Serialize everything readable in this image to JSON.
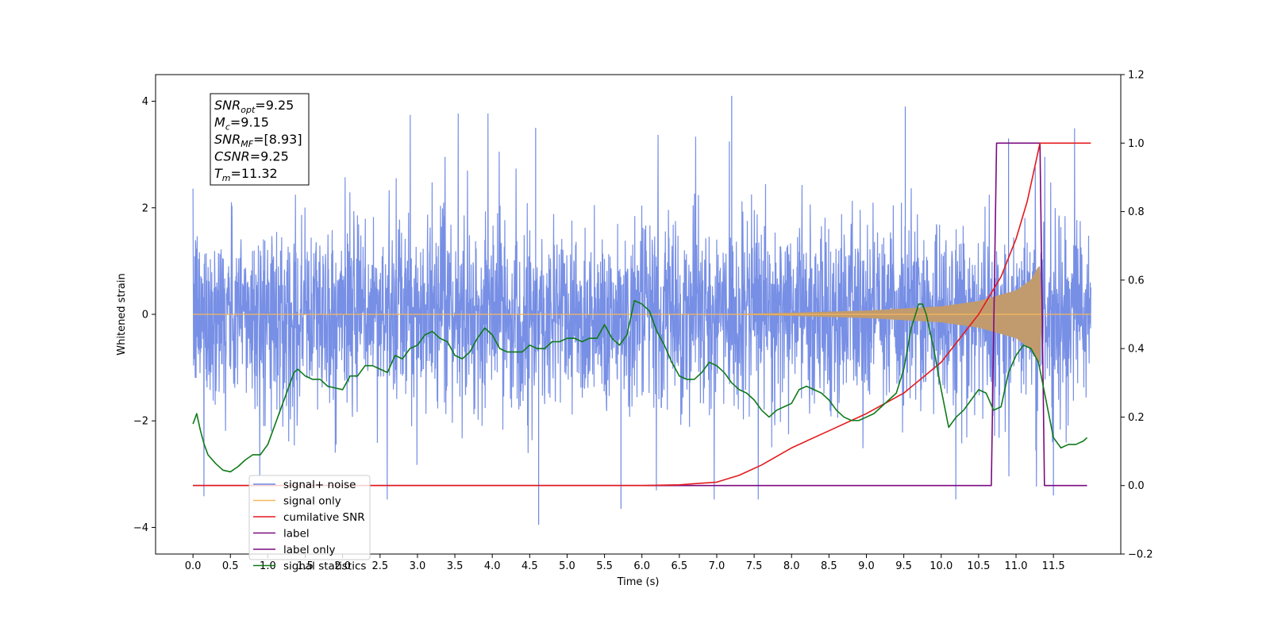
{
  "chart_data": {
    "type": "line",
    "xlabel": "Time (s)",
    "ylabel": "Whitened strain",
    "xlim": [
      -0.5,
      12.4
    ],
    "ylim": [
      -4.5,
      4.5
    ],
    "y2lim": [
      -0.2,
      1.2
    ],
    "xticks": [
      0.0,
      0.5,
      1.0,
      1.5,
      2.0,
      2.5,
      3.0,
      3.5,
      4.0,
      4.5,
      5.0,
      5.5,
      6.0,
      6.5,
      7.0,
      7.5,
      8.0,
      8.5,
      9.0,
      9.5,
      10.0,
      10.5,
      11.0,
      11.5
    ],
    "xtick_labels": [
      "0.0",
      "0.5",
      "1.0",
      "1.5",
      "2.0",
      "2.5",
      "3.0",
      "3.5",
      "4.0",
      "4.5",
      "5.0",
      "5.5",
      "6.0",
      "6.5",
      "7.0",
      "7.5",
      "8.0",
      "8.5",
      "9.0",
      "9.5",
      "10.0",
      "10.5",
      "11.0",
      "11.5"
    ],
    "yticks": [
      -4,
      -2,
      0,
      2,
      4
    ],
    "ytick_labels": [
      "−4",
      "−2",
      "0",
      "2",
      "4"
    ],
    "y2ticks": [
      -0.2,
      0.0,
      0.2,
      0.4,
      0.6,
      0.8,
      1.0,
      1.2
    ],
    "y2tick_labels": [
      "−0.2",
      "0.0",
      "0.2",
      "0.4",
      "0.6",
      "0.8",
      "1.0",
      "1.2"
    ],
    "grid": false,
    "legend_position": "bottom-left",
    "annotation": [
      {
        "sym": "SNR",
        "sub": "opt",
        "value": "=9.25"
      },
      {
        "sym": "M",
        "sub": "c",
        "value": "=9.15"
      },
      {
        "sym": "SNR",
        "sub": "MF",
        "value": "=[8.93]"
      },
      {
        "sym": "CSNR",
        "sub": "",
        "value": "=9.25"
      },
      {
        "sym": "T",
        "sub": "m",
        "value": "=11.32"
      }
    ],
    "series": [
      {
        "name": "signal+ noise",
        "axis": "left",
        "color": "#6b86e3",
        "style": "noise",
        "x_range": [
          0.0,
          12.0
        ],
        "envelope_typical": 1.5,
        "peak_max": 4.1,
        "peak_min": -3.95
      },
      {
        "name": "signal only",
        "axis": "left",
        "color": "#f5b85c",
        "fill_color": "#c19b6e",
        "style": "chirp",
        "amplitude_envelope": {
          "t": [
            0.0,
            7.0,
            8.0,
            9.0,
            10.0,
            10.5,
            11.0,
            11.2,
            11.3,
            11.32,
            11.35,
            12.0
          ],
          "a": [
            0.0,
            0.0,
            0.03,
            0.07,
            0.15,
            0.25,
            0.45,
            0.65,
            0.9,
            0.9,
            0.0,
            0.0
          ]
        }
      },
      {
        "name": "cumilative SNR",
        "axis": "right",
        "color": "#e41a1c",
        "x": [
          0.0,
          6.0,
          6.5,
          7.0,
          7.3,
          7.6,
          8.0,
          8.5,
          9.0,
          9.5,
          10.0,
          10.5,
          10.8,
          11.0,
          11.15,
          11.3,
          11.32,
          12.0
        ],
        "y": [
          0.0,
          0.0,
          0.002,
          0.01,
          0.03,
          0.06,
          0.11,
          0.16,
          0.21,
          0.27,
          0.36,
          0.5,
          0.61,
          0.72,
          0.83,
          0.98,
          1.0,
          1.0
        ]
      },
      {
        "name": "label",
        "axis": "right",
        "color": "#7b0a80",
        "x": [
          0.0,
          10.67,
          10.74,
          11.32,
          11.38,
          11.95
        ],
        "y": [
          0.0,
          0.0,
          1.0,
          1.0,
          0.0,
          0.0
        ]
      },
      {
        "name": "label only",
        "axis": "right",
        "color": "#7b0a80",
        "style": "hidden",
        "x": [],
        "y": []
      },
      {
        "name": "signal statistics",
        "axis": "right",
        "color": "#0f7a1a",
        "x": [
          0.0,
          0.05,
          0.1,
          0.15,
          0.2,
          0.3,
          0.4,
          0.5,
          0.6,
          0.7,
          0.8,
          0.9,
          1.0,
          1.1,
          1.2,
          1.3,
          1.35,
          1.4,
          1.5,
          1.6,
          1.7,
          1.8,
          1.9,
          2.0,
          2.1,
          2.2,
          2.3,
          2.4,
          2.5,
          2.6,
          2.7,
          2.8,
          2.9,
          3.0,
          3.1,
          3.2,
          3.3,
          3.4,
          3.5,
          3.6,
          3.7,
          3.8,
          3.9,
          4.0,
          4.1,
          4.2,
          4.3,
          4.4,
          4.5,
          4.6,
          4.7,
          4.8,
          4.9,
          5.0,
          5.1,
          5.2,
          5.3,
          5.4,
          5.5,
          5.6,
          5.7,
          5.8,
          5.9,
          6.0,
          6.1,
          6.2,
          6.3,
          6.4,
          6.5,
          6.6,
          6.7,
          6.8,
          6.9,
          7.0,
          7.1,
          7.2,
          7.3,
          7.4,
          7.5,
          7.6,
          7.7,
          7.8,
          7.9,
          8.0,
          8.1,
          8.2,
          8.3,
          8.4,
          8.5,
          8.6,
          8.7,
          8.8,
          8.9,
          9.0,
          9.1,
          9.2,
          9.3,
          9.4,
          9.5,
          9.6,
          9.7,
          9.75,
          9.8,
          9.9,
          10.0,
          10.1,
          10.2,
          10.3,
          10.4,
          10.5,
          10.6,
          10.7,
          10.8,
          10.9,
          11.0,
          11.1,
          11.2,
          11.3,
          11.4,
          11.5,
          11.6,
          11.7,
          11.8,
          11.9,
          11.95
        ],
        "y": [
          0.18,
          0.21,
          0.16,
          0.12,
          0.09,
          0.065,
          0.045,
          0.04,
          0.055,
          0.075,
          0.09,
          0.09,
          0.12,
          0.18,
          0.24,
          0.3,
          0.33,
          0.34,
          0.32,
          0.31,
          0.31,
          0.29,
          0.285,
          0.28,
          0.32,
          0.32,
          0.35,
          0.35,
          0.34,
          0.33,
          0.38,
          0.37,
          0.4,
          0.41,
          0.44,
          0.45,
          0.43,
          0.42,
          0.38,
          0.37,
          0.39,
          0.43,
          0.46,
          0.44,
          0.4,
          0.39,
          0.39,
          0.39,
          0.41,
          0.4,
          0.4,
          0.42,
          0.42,
          0.43,
          0.43,
          0.42,
          0.43,
          0.43,
          0.47,
          0.43,
          0.41,
          0.44,
          0.54,
          0.53,
          0.51,
          0.45,
          0.41,
          0.36,
          0.32,
          0.31,
          0.31,
          0.33,
          0.36,
          0.35,
          0.33,
          0.3,
          0.28,
          0.27,
          0.25,
          0.22,
          0.2,
          0.22,
          0.23,
          0.24,
          0.28,
          0.29,
          0.28,
          0.27,
          0.25,
          0.22,
          0.2,
          0.19,
          0.19,
          0.2,
          0.21,
          0.23,
          0.25,
          0.27,
          0.34,
          0.46,
          0.53,
          0.53,
          0.5,
          0.4,
          0.28,
          0.17,
          0.2,
          0.22,
          0.25,
          0.28,
          0.27,
          0.22,
          0.23,
          0.33,
          0.38,
          0.41,
          0.4,
          0.36,
          0.25,
          0.14,
          0.11,
          0.12,
          0.12,
          0.13,
          0.14
        ]
      }
    ]
  }
}
